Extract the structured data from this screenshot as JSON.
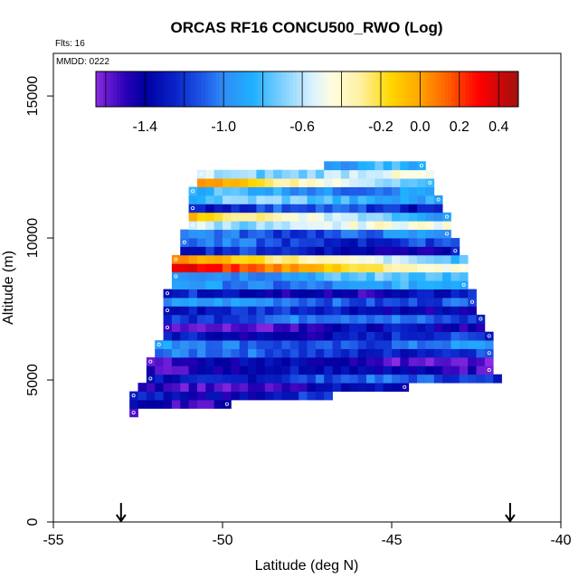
{
  "chart_data": {
    "type": "heatmap",
    "title": "ORCAS RF16 CONCU500_RWO (Log)",
    "flights_label": "Flts: 16",
    "date_label": "MMDD: 0222",
    "xlabel": "Latitude (deg N)",
    "ylabel": "Altitude (m)",
    "xlim": [
      -55,
      -40
    ],
    "ylim": [
      0,
      16500
    ],
    "xticks": [
      -55,
      -50,
      -45,
      -40
    ],
    "xtick_labels": [
      "-55",
      "-50",
      "-45",
      "-40"
    ],
    "yticks": [
      0,
      5000,
      10000,
      15000
    ],
    "ytick_labels": [
      "0",
      "5000",
      "10000",
      "15000"
    ],
    "colorbar": {
      "range": [
        -1.65,
        0.5
      ],
      "ticks": [
        -1.4,
        -1.0,
        -0.6,
        -0.2,
        0.0,
        0.2,
        0.4
      ],
      "tick_labels": [
        "-1.4",
        "-1.0",
        "-0.6",
        "-0.2",
        "0.0",
        "0.2",
        "0.4"
      ],
      "divisions": [
        -1.6,
        -1.4,
        -1.2,
        -1.0,
        -0.8,
        -0.6,
        -0.4,
        -0.2,
        0.0,
        0.2,
        0.4
      ]
    },
    "colorscale": [
      [
        -1.65,
        "#8a2be2"
      ],
      [
        -1.5,
        "#2a00b8"
      ],
      [
        -1.4,
        "#0000a0"
      ],
      [
        -1.25,
        "#0a22c8"
      ],
      [
        -1.1,
        "#1f5ae8"
      ],
      [
        -1.0,
        "#2f8cf5"
      ],
      [
        -0.85,
        "#1fb0ff"
      ],
      [
        -0.7,
        "#7fd0ff"
      ],
      [
        -0.55,
        "#d9f2ff"
      ],
      [
        -0.45,
        "#fffde0"
      ],
      [
        -0.3,
        "#fff0a0"
      ],
      [
        -0.15,
        "#ffd700"
      ],
      [
        0.0,
        "#ffa500"
      ],
      [
        0.15,
        "#ff5a00"
      ],
      [
        0.3,
        "#ff0000"
      ],
      [
        0.5,
        "#a01010"
      ]
    ],
    "bin_size": {
      "lat": 0.25,
      "alt": 300
    },
    "altitude_bands": [
      {
        "alt": 3850,
        "lat_min": -52.75,
        "lat_max": -52.5,
        "value": -1.55
      },
      {
        "alt": 4150,
        "lat_min": -52.75,
        "lat_max": -49.75,
        "value": -1.45
      },
      {
        "alt": 4450,
        "lat_min": -52.75,
        "lat_max": -46.75,
        "value": -1.3
      },
      {
        "alt": 4750,
        "lat_min": -52.5,
        "lat_max": -44.5,
        "value": -1.45
      },
      {
        "alt": 5050,
        "lat_min": -52.25,
        "lat_max": -41.75,
        "value": -1.2
      },
      {
        "alt": 5350,
        "lat_min": -52.25,
        "lat_max": -42.0,
        "value": -1.4
      },
      {
        "alt": 5650,
        "lat_min": -52.25,
        "lat_max": -42.0,
        "value": -1.5
      },
      {
        "alt": 5950,
        "lat_min": -52.0,
        "lat_max": -42.0,
        "value": -1.15
      },
      {
        "alt": 6250,
        "lat_min": -52.0,
        "lat_max": -42.0,
        "value": -1.05
      },
      {
        "alt": 6550,
        "lat_min": -51.75,
        "lat_max": -42.0,
        "value": -1.3
      },
      {
        "alt": 6850,
        "lat_min": -51.75,
        "lat_max": -42.25,
        "value": -1.45
      },
      {
        "alt": 7150,
        "lat_min": -51.75,
        "lat_max": -42.25,
        "value": -1.1
      },
      {
        "alt": 7450,
        "lat_min": -51.75,
        "lat_max": -42.5,
        "value": -1.3
      },
      {
        "alt": 7750,
        "lat_min": -51.75,
        "lat_max": -42.5,
        "value": -1.05
      },
      {
        "alt": 8050,
        "lat_min": -51.75,
        "lat_max": -42.5,
        "value": -1.35
      },
      {
        "alt": 8350,
        "lat_min": -51.5,
        "lat_max": -42.75,
        "value": -0.95
      },
      {
        "alt": 8650,
        "lat_min": -51.5,
        "lat_max": -42.75,
        "value": -0.85
      },
      {
        "alt": 8950,
        "lat_min": -51.5,
        "lat_max": -42.75,
        "value": 0.1
      },
      {
        "alt": 9250,
        "lat_min": -51.5,
        "lat_max": -42.75,
        "value": -0.2
      },
      {
        "alt": 9550,
        "lat_min": -51.25,
        "lat_max": -43.0,
        "value": -1.3
      },
      {
        "alt": 9850,
        "lat_min": -51.25,
        "lat_max": -43.0,
        "value": -1.15
      },
      {
        "alt": 10150,
        "lat_min": -51.25,
        "lat_max": -43.25,
        "value": -1.05
      },
      {
        "alt": 10450,
        "lat_min": -51.0,
        "lat_max": -43.25,
        "value": -0.55
      },
      {
        "alt": 10750,
        "lat_min": -51.0,
        "lat_max": -43.25,
        "value": -0.35
      },
      {
        "alt": 11050,
        "lat_min": -51.0,
        "lat_max": -43.5,
        "value": -1.2
      },
      {
        "alt": 11350,
        "lat_min": -51.0,
        "lat_max": -43.5,
        "value": -0.8
      },
      {
        "alt": 11650,
        "lat_min": -51.0,
        "lat_max": -43.75,
        "value": -0.9
      },
      {
        "alt": 11950,
        "lat_min": -50.75,
        "lat_max": -43.75,
        "value": -0.25
      },
      {
        "alt": 12250,
        "lat_min": -50.75,
        "lat_max": -43.75,
        "value": -0.6
      },
      {
        "alt": 12550,
        "lat_min": -47.0,
        "lat_max": -44.0,
        "value": -0.9
      }
    ],
    "marker_arrows_lat": [
      -53.0,
      -41.5
    ]
  }
}
